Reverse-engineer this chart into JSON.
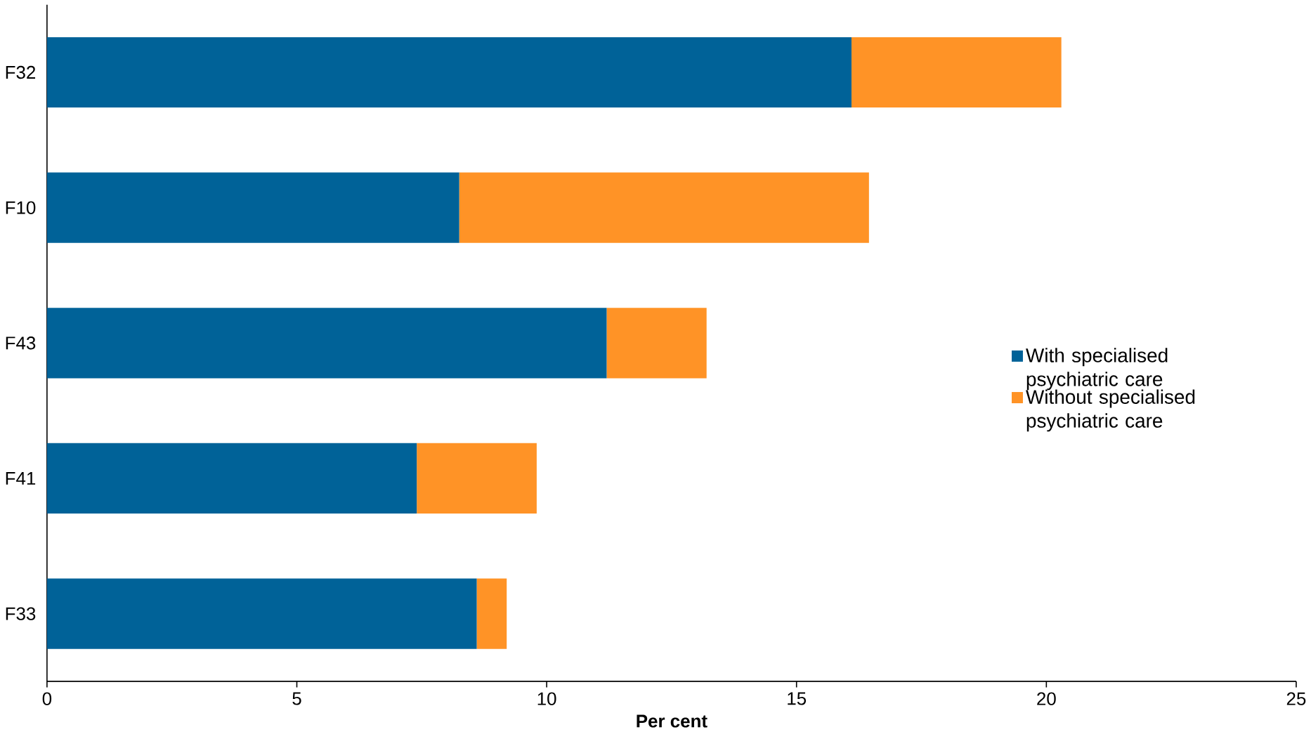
{
  "chart_data": {
    "type": "bar",
    "orientation": "horizontal",
    "stacked": true,
    "xlabel": "Per cent",
    "categories": [
      "F32",
      "F10",
      "F43",
      "F41",
      "F33"
    ],
    "series": [
      {
        "name": "With specialised psychiatric care",
        "color": "#006298",
        "values": [
          16.1,
          8.25,
          11.2,
          7.4,
          8.6
        ]
      },
      {
        "name": "Without specialised psychiatric care",
        "color": "#ff9326",
        "values": [
          4.2,
          8.2,
          2.0,
          2.4,
          0.6
        ]
      }
    ],
    "xlim": [
      0,
      25
    ],
    "xticks": [
      0,
      5,
      10,
      15,
      20,
      25
    ],
    "grid": false,
    "legend": "right"
  }
}
